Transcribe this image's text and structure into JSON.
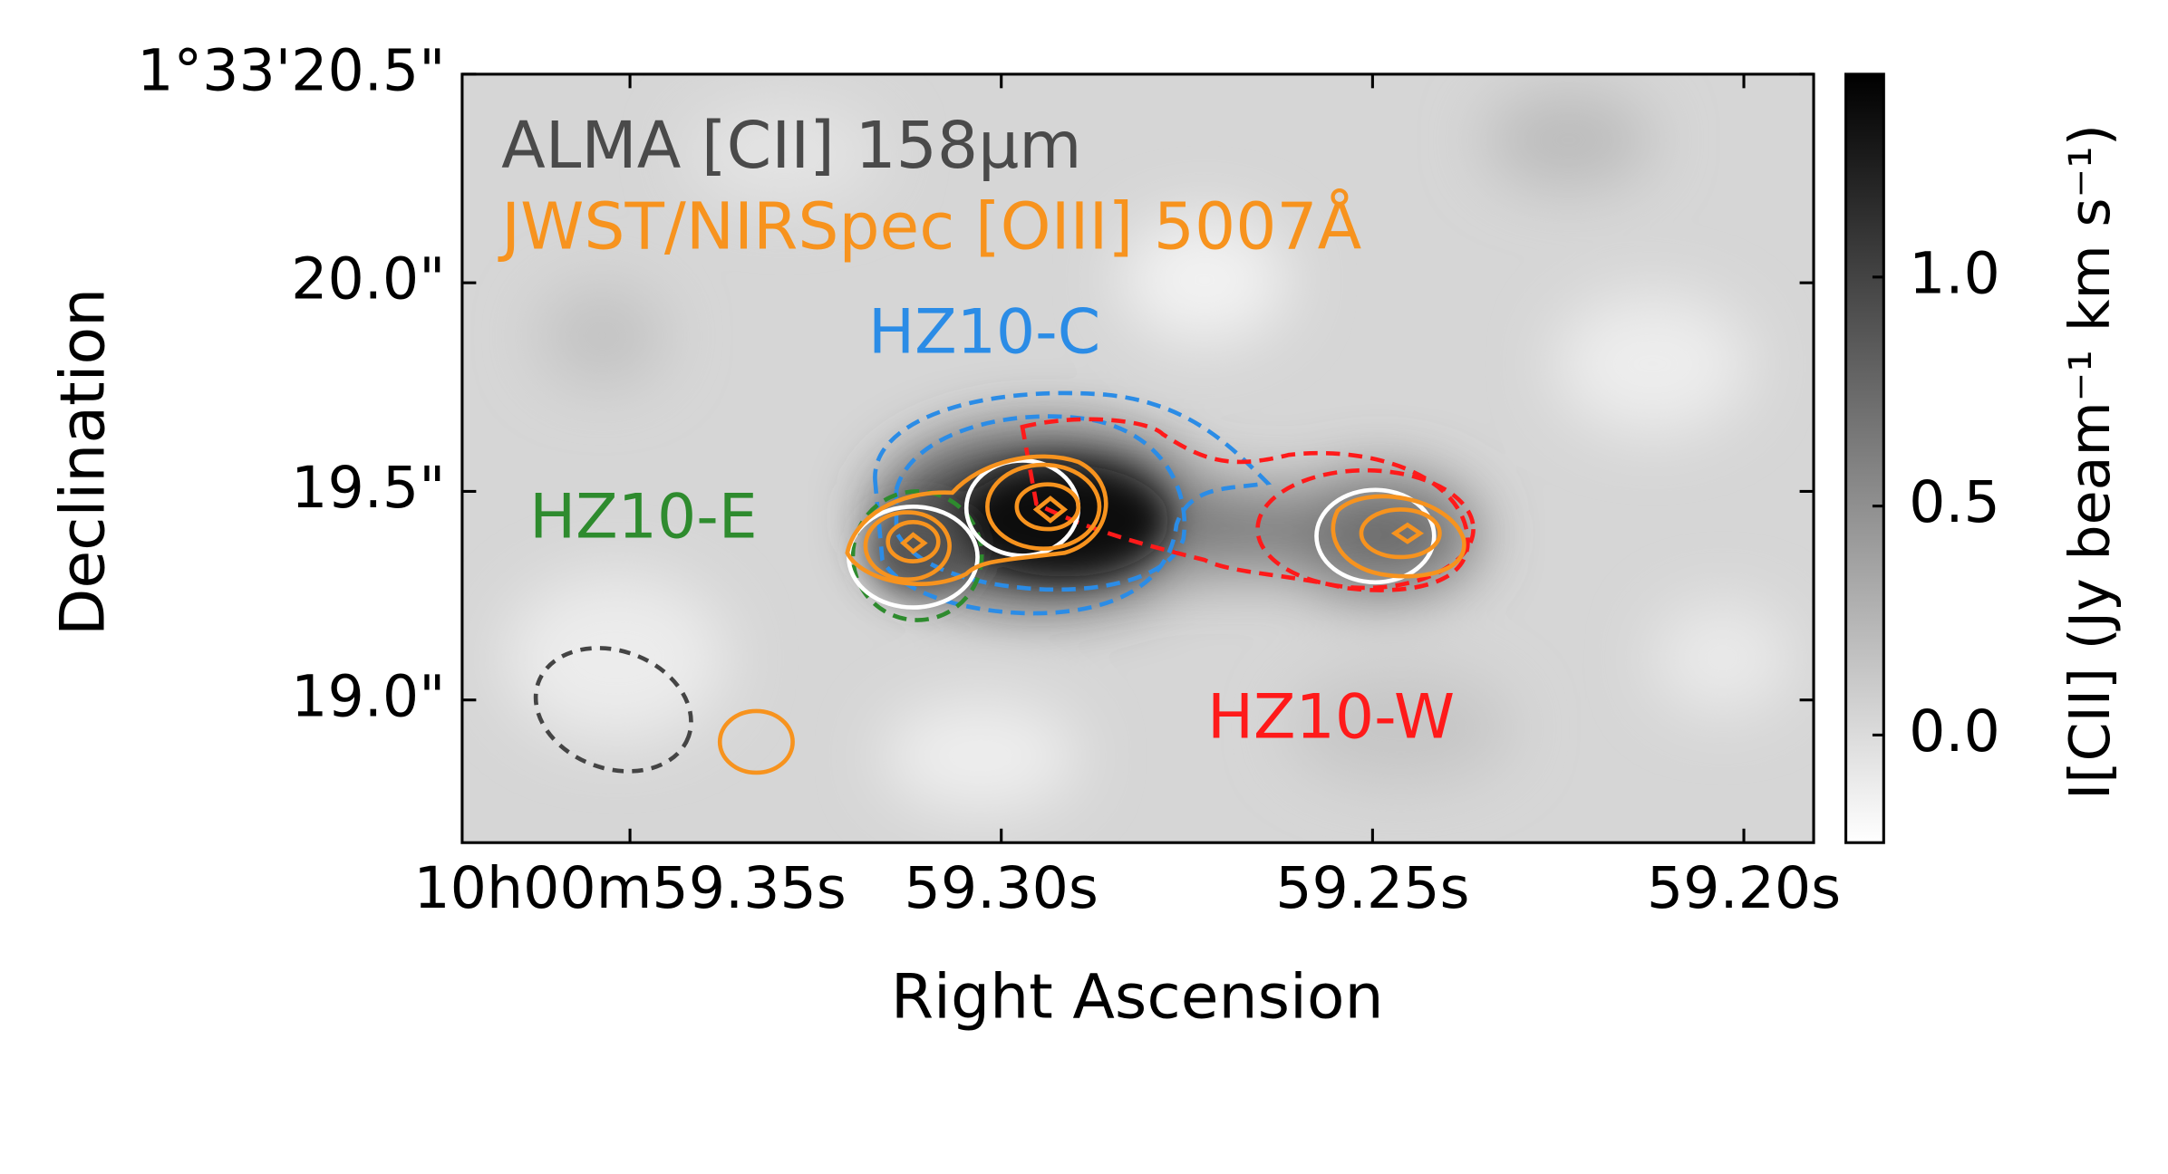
{
  "chart_data": {
    "type": "image",
    "x_label": "Right Ascension",
    "y_label": "Declination",
    "colorbar_label": "I[CII] (Jy beam⁻¹ km s⁻¹)",
    "annotations": [
      {
        "text": "ALMA [CII] 158μm",
        "color": "#4a4a4a"
      },
      {
        "text": "JWST/NIRSpec [OIII] 5007Å",
        "color": "#f7931e"
      },
      {
        "text": "HZ10-C",
        "color": "#2b8ce6"
      },
      {
        "text": "HZ10-E",
        "color": "#2e8b2e"
      },
      {
        "text": "HZ10-W",
        "color": "#ff1a1a"
      }
    ],
    "xlim": [
      59.3726,
      59.1906
    ],
    "xticks": [
      {
        "value": 59.35,
        "label": "10h00m59.35s"
      },
      {
        "value": 59.3,
        "label": "59.30s"
      },
      {
        "value": 59.25,
        "label": "59.25s"
      },
      {
        "value": 59.2,
        "label": "59.20s"
      }
    ],
    "ylim": [
      18.658,
      20.5
    ],
    "yticks": [
      {
        "value": 19.0,
        "label": "19.0\""
      },
      {
        "value": 19.5,
        "label": "19.5\""
      },
      {
        "value": 20.0,
        "label": "20.0\""
      },
      {
        "value": 20.5,
        "label": "1°33'20.5\""
      }
    ],
    "clim": [
      -0.235,
      1.443
    ],
    "cticks": [
      {
        "value": 0.0,
        "label": "0.0"
      },
      {
        "value": 0.5,
        "label": "0.5"
      },
      {
        "value": 1.0,
        "label": "1.0"
      }
    ]
  }
}
